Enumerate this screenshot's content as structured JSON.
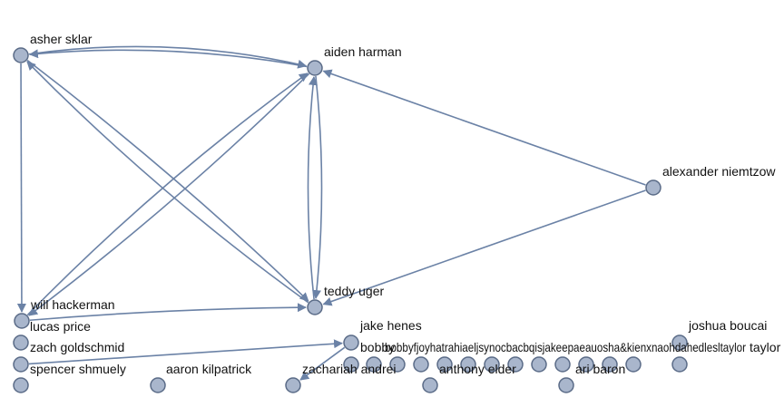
{
  "diagram": {
    "type": "directed-graph",
    "colors": {
      "node_fill": "#a9b6cc",
      "node_stroke": "#5a6b87",
      "edge": "#6b82a6",
      "label": "#111111"
    },
    "nodes": [
      {
        "id": "asher",
        "label": "asher sklar"
      },
      {
        "id": "aiden",
        "label": "aiden harman"
      },
      {
        "id": "alexander",
        "label": "alexander niemtzow"
      },
      {
        "id": "will",
        "label": "will hackerman"
      },
      {
        "id": "teddy",
        "label": "teddy uger"
      },
      {
        "id": "lucas",
        "label": "lucas price"
      },
      {
        "id": "zach",
        "label": "zach goldschmid"
      },
      {
        "id": "spencer",
        "label": "spencer shmuely"
      },
      {
        "id": "aaron",
        "label": "aaron kilpatrick"
      },
      {
        "id": "zachariah",
        "label": "zachariah andrei"
      },
      {
        "id": "jake",
        "label": "jake henes"
      },
      {
        "id": "bobby",
        "label": "bobby"
      },
      {
        "id": "anthony",
        "label": "anthony elder"
      },
      {
        "id": "ari",
        "label": "ari baron"
      },
      {
        "id": "joshua",
        "label": "joshua boucai"
      },
      {
        "id": "taylor",
        "label": "taylor"
      },
      {
        "id": "c1",
        "label": ""
      },
      {
        "id": "c2",
        "label": ""
      },
      {
        "id": "c3",
        "label": ""
      },
      {
        "id": "c4",
        "label": ""
      },
      {
        "id": "c5",
        "label": ""
      },
      {
        "id": "c6",
        "label": ""
      },
      {
        "id": "c7",
        "label": ""
      },
      {
        "id": "c8",
        "label": ""
      },
      {
        "id": "c9",
        "label": ""
      },
      {
        "id": "c10",
        "label": ""
      },
      {
        "id": "c11",
        "label": ""
      },
      {
        "id": "c12",
        "label": ""
      }
    ],
    "edges": [
      {
        "from": "asher",
        "to": "aiden"
      },
      {
        "from": "aiden",
        "to": "asher"
      },
      {
        "from": "asher",
        "to": "will"
      },
      {
        "from": "asher",
        "to": "teddy"
      },
      {
        "from": "teddy",
        "to": "asher"
      },
      {
        "from": "will",
        "to": "aiden"
      },
      {
        "from": "aiden",
        "to": "will"
      },
      {
        "from": "will",
        "to": "teddy"
      },
      {
        "from": "aiden",
        "to": "teddy"
      },
      {
        "from": "teddy",
        "to": "aiden"
      },
      {
        "from": "alexander",
        "to": "aiden"
      },
      {
        "from": "alexander",
        "to": "teddy"
      },
      {
        "from": "zach",
        "to": "jake"
      },
      {
        "from": "jake",
        "to": "zachariah"
      }
    ],
    "overlap_text": "bobbyfjoyhatrahiaeljsynocbacbqisjakeepaeauosha&kienxnaohdahedlesltaylor"
  }
}
